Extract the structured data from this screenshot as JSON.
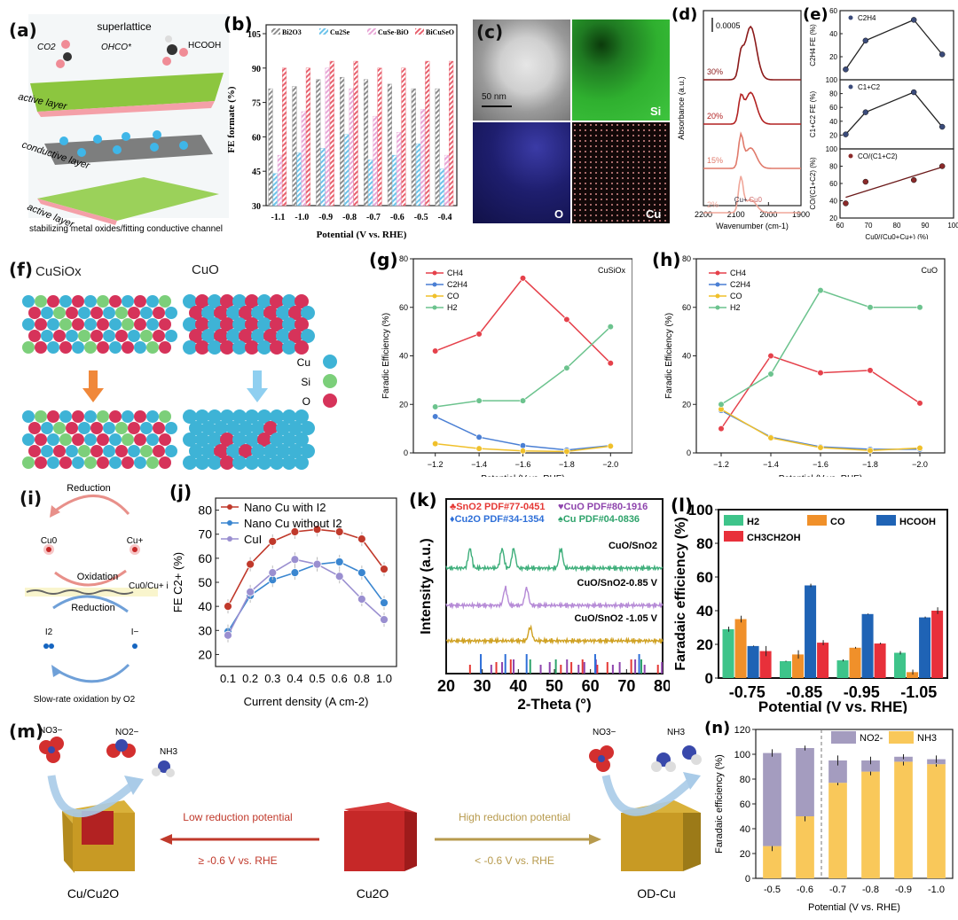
{
  "panels": {
    "a": {
      "label": "(a)",
      "title": "superlattice",
      "co2": "CO2",
      "ohco": "OHCO*",
      "hcooh": "HCOOH",
      "layer_top": "active layer",
      "layer_mid": "conductive layer",
      "layer_bot": "active layer",
      "caption": "stabilizing metal oxides/fitting conductive channel"
    },
    "c": {
      "label": "(c)",
      "scale_bar": "50 nm",
      "maps": [
        "Si",
        "O",
        "Cu"
      ]
    },
    "f": {
      "label": "(f)",
      "left_title": "CuSiOx",
      "right_title": "CuO",
      "legend": [
        "Cu",
        "Si",
        "O"
      ]
    },
    "i": {
      "label": "(i)",
      "top_arrow": "Reduction",
      "cu0": "Cu0",
      "cuplus": "Cu+",
      "oxidation": "Oxidation",
      "interface": "Cu0/Cu+ interface",
      "reduction": "Reduction",
      "i2": "I2",
      "iminus": "I−",
      "bottom": "Slow-rate oxidation by O2"
    },
    "m": {
      "label": "(m)",
      "no3_left": "NO3−",
      "no2": "NO2−",
      "nh3_left": "NH3",
      "low_text": "Low reduction potential",
      "low_cond": "≥ -0.6 V vs. RHE",
      "high_text": "High reduction potential",
      "high_cond": "< -0.6 V vs. RHE",
      "left_name": "Cu/Cu2O",
      "center_name": "Cu2O",
      "right_name": "OD-Cu",
      "no3_right": "NO3−",
      "nh3_right": "NH3"
    }
  },
  "chart_data": [
    {
      "id": "b",
      "label": "(b)",
      "type": "bar",
      "title": "",
      "xlabel": "Potential (V vs. RHE)",
      "ylabel": "FE formate (%)",
      "ylim": [
        30,
        105
      ],
      "yticks": [
        30,
        45,
        60,
        75,
        90,
        105
      ],
      "categories": [
        "-1.1",
        "-1.0",
        "-0.9",
        "-0.8",
        "-0.7",
        "-0.6",
        "-0.5",
        "-0.4"
      ],
      "series": [
        {
          "name": "Bi2O3",
          "color": "#8c8c8c",
          "values": [
            81,
            82,
            85,
            86,
            85,
            83,
            81,
            81
          ]
        },
        {
          "name": "Cu2Se",
          "color": "#6cc3ea",
          "values": [
            44,
            53,
            55,
            61,
            50,
            52,
            57,
            46
          ]
        },
        {
          "name": "CuSe-BiO",
          "color": "#e8a6d6",
          "values": [
            52,
            71,
            90,
            81,
            69,
            62,
            72,
            52
          ]
        },
        {
          "name": "BiCuSeO",
          "color": "#e8616e",
          "values": [
            90,
            90,
            93,
            93,
            90,
            90,
            93,
            93
          ]
        }
      ],
      "legend": "top"
    },
    {
      "id": "d",
      "label": "(d)",
      "type": "line",
      "xlabel": "Wavenumber (cm-1)",
      "ylabel": "Absorbance (a.u.)",
      "xlim": [
        2200,
        1900
      ],
      "xticks": [
        2200,
        2100,
        2000,
        1900
      ],
      "scale": "0.0005",
      "traces": [
        {
          "name": "30%",
          "color": "#8b1a1a"
        },
        {
          "name": "20%",
          "color": "#b22222"
        },
        {
          "name": "15%",
          "color": "#e07a6b"
        },
        {
          "name": "2%",
          "color": "#f0a79a"
        }
      ],
      "peaks": {
        "cu_plus": "Cu+",
        "cu0": "Cu0",
        "cu_plus_wn": 2085,
        "cu0_wn": 2055
      }
    },
    {
      "id": "e",
      "label": "(e)",
      "type": "scatter",
      "xlabel": "Cu0/(Cu0+Cu+) (%)",
      "xlim": [
        60,
        100
      ],
      "xticks": [
        60,
        70,
        80,
        90,
        100
      ],
      "subplots": [
        {
          "name": "C2H4",
          "ylabel": "C2H4 FE (%)",
          "ylim": [
            0,
            60
          ],
          "yticks": [
            20,
            40,
            60
          ],
          "x": [
            62,
            69,
            86,
            96
          ],
          "y": [
            9,
            34,
            52,
            22
          ]
        },
        {
          "name": "C1+C2",
          "ylabel": "C1+C2 FE (%)",
          "ylim": [
            0,
            100
          ],
          "yticks": [
            20,
            40,
            60,
            80,
            100
          ],
          "x": [
            62,
            69,
            86,
            96
          ],
          "y": [
            21,
            53,
            82,
            32
          ]
        },
        {
          "name": "CO/(C1+C2)",
          "ylabel": "CO/(C1+C2) (%)",
          "ylim": [
            20,
            100
          ],
          "yticks": [
            20,
            40,
            60,
            80,
            100
          ],
          "x": [
            62,
            69,
            86,
            96
          ],
          "y": [
            37,
            62,
            64,
            80
          ],
          "fit": [
            [
              62,
              44
            ],
            [
              96,
              79
            ]
          ]
        }
      ]
    },
    {
      "id": "g",
      "label": "(g)",
      "type": "line",
      "annotation": "CuSiOx",
      "xlabel": "Potential (V vs. RHE)",
      "ylabel": "Faradic Efficiency (%)",
      "ylim": [
        0,
        80
      ],
      "yticks": [
        0,
        20,
        40,
        60,
        80
      ],
      "x": [
        -1.2,
        -1.4,
        -1.6,
        -1.8,
        -2.0
      ],
      "series": [
        {
          "name": "CH4",
          "color": "#e5414b",
          "values": [
            42,
            49,
            72,
            55,
            37
          ]
        },
        {
          "name": "C2H4",
          "color": "#4a7fd4",
          "values": [
            15,
            6.5,
            3,
            1.2,
            3
          ]
        },
        {
          "name": "CO",
          "color": "#f0c02b",
          "values": [
            3.8,
            1.8,
            0.8,
            0.6,
            2.8
          ]
        },
        {
          "name": "H2",
          "color": "#6cc38e",
          "values": [
            19,
            21.5,
            21.5,
            35,
            52
          ]
        }
      ]
    },
    {
      "id": "h",
      "label": "(h)",
      "type": "line",
      "annotation": "CuO",
      "xlabel": "Potential (V vs. RHE)",
      "ylabel": "Faradic Efficiency (%)",
      "ylim": [
        0,
        80
      ],
      "yticks": [
        0,
        20,
        40,
        60,
        80
      ],
      "x": [
        -1.2,
        -1.4,
        -1.6,
        -1.8,
        -2.0
      ],
      "series": [
        {
          "name": "CH4",
          "color": "#e5414b",
          "values": [
            10,
            40,
            33,
            34,
            20.5
          ]
        },
        {
          "name": "C2H4",
          "color": "#4a7fd4",
          "values": [
            17.5,
            6.5,
            2.5,
            1.5,
            1.5
          ]
        },
        {
          "name": "CO",
          "color": "#f0c02b",
          "values": [
            18,
            6.2,
            2.2,
            1,
            2
          ]
        },
        {
          "name": "H2",
          "color": "#6cc38e",
          "values": [
            20,
            32.5,
            67,
            60,
            60
          ]
        }
      ]
    },
    {
      "id": "j",
      "label": "(j)",
      "type": "line",
      "xlabel": "Current density (A cm-2)",
      "ylabel": "FE C2+ (%)",
      "ylim": [
        15,
        85
      ],
      "yticks": [
        20,
        30,
        40,
        50,
        60,
        70,
        80
      ],
      "categories": [
        "0.1",
        "0.2",
        "0.3",
        "0.4",
        "0.5",
        "0.6",
        "0.8",
        "1.0"
      ],
      "series": [
        {
          "name": "Nano Cu with I2",
          "color": "#c0392b",
          "values": [
            40,
            57.5,
            67,
            71,
            72,
            71,
            68,
            55.5
          ]
        },
        {
          "name": "Nano Cu without I2",
          "color": "#3a86d0",
          "values": [
            29.5,
            44.5,
            51,
            54,
            57.5,
            58.5,
            54,
            41.5
          ]
        },
        {
          "name": "CuI",
          "color": "#9a8fd0",
          "values": [
            28,
            46,
            54,
            59.5,
            57.5,
            52.5,
            43,
            34.5
          ]
        }
      ]
    },
    {
      "id": "k",
      "label": "(k)",
      "type": "line",
      "xlabel": "2-Theta (°)",
      "ylabel": "Intensity (a.u.)",
      "xlim": [
        20,
        80
      ],
      "xticks": [
        20,
        30,
        40,
        50,
        60,
        70,
        80
      ],
      "refs": [
        {
          "name": "SnO2 PDF#77-0451",
          "color": "#e53935",
          "symbol": "♣"
        },
        {
          "name": "CuO PDF#80-1916",
          "color": "#8e44ad",
          "symbol": "♥"
        },
        {
          "name": "Cu2O PDF#34-1354",
          "color": "#2e6fd8",
          "symbol": "♦"
        },
        {
          "name": "Cu PDF#04-0836",
          "color": "#2ea36b",
          "symbol": "♠"
        }
      ],
      "traces": [
        {
          "name": "CuO/SnO2",
          "color": "#3dae7a",
          "peaks": [
            26.6,
            35.5,
            38.7,
            51.8
          ]
        },
        {
          "name": "CuO/SnO2-0.85 V",
          "color": "#b589d6",
          "peaks": [
            36.4,
            42.3
          ]
        },
        {
          "name": "CuO/SnO2 -1.05 V",
          "color": "#cfa020",
          "peaks": [
            43.3
          ]
        }
      ],
      "sticks": {
        "SnO2": [
          26.6,
          33.9,
          37.9,
          51.8,
          54.7,
          57.8,
          61.9,
          64.7,
          71.3,
          78.7
        ],
        "CuO": [
          32.5,
          35.5,
          38.7,
          46.2,
          48.7,
          53.5,
          56.7,
          58.3,
          61.5,
          66.2,
          68.1,
          72.4,
          75.0,
          79.8
        ],
        "Cu2O": [
          29.6,
          36.4,
          42.3,
          61.3,
          73.5
        ],
        "Cu": [
          43.3,
          50.4,
          74.1
        ]
      }
    },
    {
      "id": "l",
      "label": "(l)",
      "type": "bar",
      "xlabel": "Potential (V vs. RHE)",
      "ylabel": "Faradaic efficiency (%)",
      "ylim": [
        0,
        100
      ],
      "yticks": [
        0,
        20,
        40,
        60,
        80,
        100
      ],
      "categories": [
        "-0.75",
        "-0.85",
        "-0.95",
        "-1.05"
      ],
      "series": [
        {
          "name": "H2",
          "color": "#3ec48a",
          "values": [
            29,
            10,
            10.5,
            15
          ],
          "err": [
            1.5,
            0.3,
            0.6,
            1
          ]
        },
        {
          "name": "CO",
          "color": "#f0902a",
          "values": [
            35,
            14,
            18,
            3.5
          ],
          "err": [
            2,
            2.5,
            0.5,
            1.5
          ]
        },
        {
          "name": "HCOOH",
          "color": "#1f63b5",
          "values": [
            19,
            55,
            38,
            36
          ],
          "err": [
            0.3,
            1,
            0.3,
            0.5
          ]
        },
        {
          "name": "CH3CH2OH",
          "color": "#e8303a",
          "values": [
            16,
            21,
            20.5,
            40
          ],
          "err": [
            3,
            1.5,
            0.5,
            2
          ]
        }
      ]
    },
    {
      "id": "n",
      "label": "(n)",
      "type": "bar",
      "stacked": true,
      "xlabel": "Potential (V vs. RHE)",
      "ylabel": "Faradaic efficiency (%)",
      "ylim": [
        0,
        120
      ],
      "yticks": [
        0,
        20,
        40,
        60,
        80,
        100,
        120
      ],
      "categories": [
        "-0.5",
        "-0.6",
        "-0.7",
        "-0.8",
        "-0.9",
        "-1.0"
      ],
      "series": [
        {
          "name": "NH3",
          "color": "#f9c85a",
          "values": [
            26,
            50,
            77,
            86,
            94,
            92
          ],
          "err": [
            4,
            4,
            2,
            3,
            3,
            2
          ]
        },
        {
          "name": "NO2-",
          "color": "#a49cbf",
          "values": [
            75,
            55,
            18,
            9,
            4,
            4
          ],
          "err": [
            3,
            2,
            4,
            3,
            2,
            3
          ]
        }
      ]
    }
  ]
}
